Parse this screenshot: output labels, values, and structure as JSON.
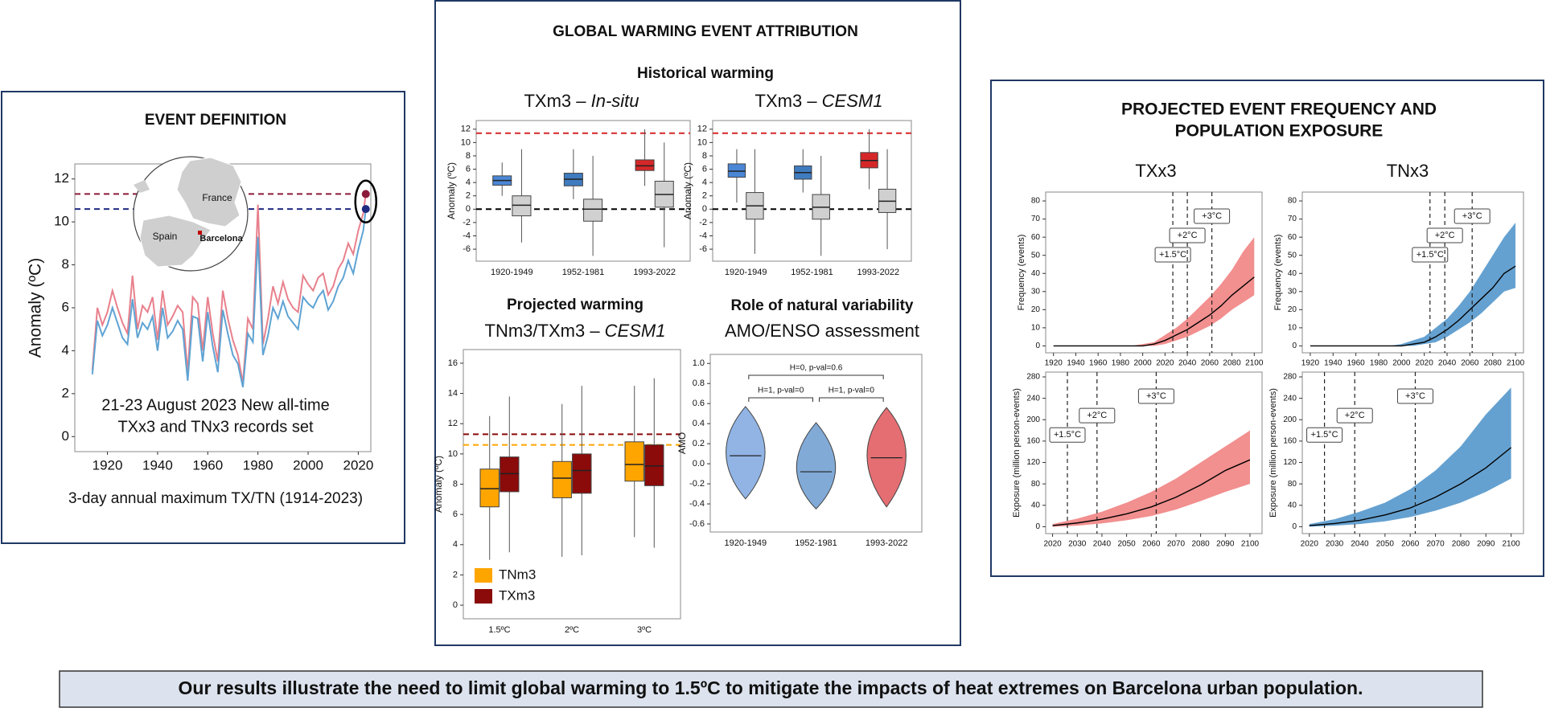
{
  "panels": {
    "left": {
      "map_labels": [
        "France",
        "Spain",
        "Barcelona"
      ],
      "annotation": [
        "21-23 August 2023 New all-time",
        "TXx3 and TNx3 records set"
      ],
      "caption": "3-day annual maximum TX/TN (1914-2023)"
    },
    "middle": {
      "title": "GLOBAL WARMING EVENT ATTRIBUTION",
      "subtitle": "Historical warming"
    },
    "right": {
      "title": [
        "PROJECTED EVENT FREQUENCY AND",
        "POPULATION EXPOSURE"
      ]
    }
  },
  "conclusion": "Our results illustrate the need to limit global warming to 1.5ºC to mitigate the impacts of heat extremes on Barcelona urban population.",
  "chart_data": [
    {
      "type": "line",
      "title": "EVENT DEFINITION",
      "ylabel": "Anomaly (ºC)",
      "x": [
        1914,
        1916,
        1918,
        1920,
        1922,
        1924,
        1926,
        1928,
        1930,
        1932,
        1934,
        1936,
        1938,
        1940,
        1942,
        1944,
        1946,
        1948,
        1950,
        1952,
        1954,
        1956,
        1958,
        1960,
        1962,
        1964,
        1966,
        1968,
        1970,
        1972,
        1974,
        1976,
        1978,
        1980,
        1982,
        1984,
        1986,
        1988,
        1990,
        1992,
        1994,
        1996,
        1998,
        2000,
        2002,
        2004,
        2006,
        2008,
        2010,
        2012,
        2014,
        2016,
        2018,
        2020,
        2022,
        2023
      ],
      "series": [
        {
          "color": "#e8808c",
          "values": [
            3.1,
            6.0,
            5.2,
            5.8,
            6.8,
            6.0,
            5.3,
            4.8,
            7.5,
            5.0,
            6.1,
            5.8,
            6.5,
            4.5,
            6.8,
            5.2,
            5.6,
            6.1,
            5.8,
            3.0,
            6.5,
            6.2,
            4.0,
            6.5,
            4.8,
            3.5,
            6.8,
            5.5,
            4.5,
            3.8,
            2.5,
            5.5,
            5.0,
            10.8,
            4.3,
            5.5,
            7.0,
            6.2,
            7.2,
            6.4,
            6.0,
            5.8,
            7.5,
            7.1,
            6.8,
            7.4,
            7.6,
            6.6,
            7.0,
            7.8,
            8.2,
            9.0,
            8.5,
            9.6,
            10.4,
            11.3
          ]
        },
        {
          "color": "#5fa3d3",
          "values": [
            2.9,
            5.4,
            4.7,
            5.2,
            6.0,
            5.3,
            4.6,
            4.3,
            6.4,
            4.6,
            5.3,
            5.0,
            5.6,
            4.0,
            6.0,
            4.6,
            4.9,
            5.4,
            5.0,
            2.6,
            5.6,
            5.5,
            3.5,
            5.8,
            4.2,
            3.0,
            5.9,
            4.8,
            3.8,
            3.4,
            2.3,
            4.8,
            4.4,
            9.3,
            3.8,
            4.7,
            6.0,
            5.5,
            6.3,
            5.6,
            5.3,
            5.0,
            6.5,
            6.2,
            6.0,
            6.5,
            6.8,
            5.9,
            6.3,
            7.0,
            7.4,
            8.2,
            7.6,
            8.7,
            9.6,
            10.6
          ]
        }
      ],
      "hlines": [
        {
          "value": 11.3,
          "color": "#8b1a3a"
        },
        {
          "value": 10.6,
          "color": "#1f2a80"
        }
      ],
      "highlight_last": true,
      "xlim": [
        1907,
        2025
      ],
      "xticks": [
        1920,
        1940,
        1960,
        1980,
        2000,
        2020
      ],
      "ylim": [
        -0.7,
        12.7
      ],
      "yticks": [
        0,
        2,
        4,
        6,
        8,
        10,
        12
      ]
    },
    {
      "type": "box",
      "title_parts": [
        "TXm3 – ",
        "In-situ"
      ],
      "ylabel": "Anomaly (ºC)",
      "categories": [
        "1920-1949",
        "1952-1981",
        "1993-2022"
      ],
      "series": [
        {
          "colors": [
            "#4a86d6",
            "#3f7bbf",
            "#d62728"
          ],
          "values": [
            [
              2,
              3.6,
              4.3,
              5,
              7
            ],
            [
              1.5,
              3.5,
              4.5,
              5.4,
              9
            ],
            [
              3.5,
              5.8,
              6.5,
              7.4,
              12
            ]
          ]
        },
        {
          "color": "#d0d0d0",
          "values": [
            [
              -5,
              -1,
              0.6,
              2,
              9
            ],
            [
              -7,
              -1.8,
              0,
              1.5,
              8
            ],
            [
              -5.7,
              0.3,
              2.2,
              4.2,
              10
            ]
          ]
        }
      ],
      "hlines": [
        {
          "value": 11.4,
          "color": "#d62728"
        },
        {
          "value": 0,
          "color": "#000000"
        }
      ],
      "ylim": [
        -7.8,
        13.3
      ],
      "yticks": [
        -6,
        -4,
        -2,
        0,
        2,
        4,
        6,
        8,
        10,
        12
      ]
    },
    {
      "type": "box",
      "title_parts": [
        "TXm3 – ",
        "CESM1"
      ],
      "ylabel": "Anomaly (ºC)",
      "categories": [
        "1920-1949",
        "1952-1981",
        "1993-2022"
      ],
      "series": [
        {
          "colors": [
            "#4a86d6",
            "#3f7bbf",
            "#d62728"
          ],
          "values": [
            [
              1,
              4.8,
              5.7,
              6.8,
              9
            ],
            [
              2.5,
              4.5,
              5.5,
              6.5,
              9
            ],
            [
              3,
              6.2,
              7.3,
              8.5,
              12
            ]
          ]
        },
        {
          "color": "#d0d0d0",
          "values": [
            [
              -6.7,
              -1.5,
              0.5,
              2.5,
              9
            ],
            [
              -7,
              -1.5,
              0.3,
              2.2,
              8
            ],
            [
              -6,
              -0.5,
              1.2,
              3,
              9
            ]
          ]
        }
      ],
      "hlines": [
        {
          "value": 11.4,
          "color": "#d62728"
        },
        {
          "value": 0,
          "color": "#000000"
        }
      ],
      "ylim": [
        -7.8,
        13.3
      ],
      "yticks": [
        -6,
        -4,
        -2,
        0,
        2,
        4,
        6,
        8,
        10,
        12
      ]
    },
    {
      "type": "box",
      "title": "Projected warming",
      "subtitle_parts": [
        "TNm3/TXm3 – ",
        "CESM1"
      ],
      "ylabel": "Anomaly (ºC)",
      "categories": [
        "1.5ºC",
        "2ºC",
        "3ºC"
      ],
      "series": [
        {
          "name": "TNm3",
          "color": "#ffa500",
          "values": [
            [
              3,
              6.5,
              7.7,
              9,
              12.5
            ],
            [
              3.2,
              7.1,
              8.4,
              9.5,
              13.3
            ],
            [
              4.5,
              8.2,
              9.3,
              10.8,
              14.5
            ]
          ]
        },
        {
          "name": "TXm3",
          "color": "#8b0a0a",
          "values": [
            [
              3.5,
              7.5,
              8.7,
              9.8,
              13.8
            ],
            [
              3.3,
              7.4,
              8.9,
              10,
              14.5
            ],
            [
              3.8,
              7.9,
              9.2,
              10.6,
              15
            ]
          ]
        }
      ],
      "hlines": [
        {
          "value": 11.3,
          "color": "#8b0a0a"
        },
        {
          "value": 10.6,
          "color": "#ffa500"
        }
      ],
      "legend": "lower left",
      "ylim": [
        -0.9,
        16.9
      ],
      "yticks": [
        0,
        2,
        4,
        6,
        8,
        10,
        12,
        14,
        16
      ]
    },
    {
      "type": "violin",
      "title": "Role of natural variability",
      "subtitle": "AMO/ENSO assessment",
      "ylabel": "AMO",
      "categories": [
        "1920-1949",
        "1952-1981",
        "1993-2022"
      ],
      "colors": [
        "#7ea7e0",
        "#6b9bd0",
        "#e0555b"
      ],
      "values": [
        [
          -0.35,
          0.08,
          0.57
        ],
        [
          -0.45,
          -0.08,
          0.41
        ],
        [
          -0.43,
          0.06,
          0.56
        ]
      ],
      "brackets": [
        {
          "label": "H=0, p-val=0.6",
          "span": [
            0,
            2
          ]
        },
        {
          "label": "H=1, p-val=0",
          "span": [
            0,
            1
          ]
        },
        {
          "label": "H=1, p-val=0",
          "span": [
            1,
            2
          ]
        }
      ],
      "ylim": [
        -0.68,
        1.09
      ],
      "yticks": [
        -0.6,
        -0.4,
        -0.2,
        {
          "value": 0,
          "label": "0.0"
        },
        0.2,
        0.4,
        0.6,
        0.8,
        {
          "value": 1,
          "label": "1.0"
        }
      ]
    },
    {
      "type": "line",
      "title": "TXx3",
      "ylabel": "Frequency (events)",
      "x": [
        1920,
        1930,
        1940,
        1950,
        1960,
        1970,
        1980,
        1990,
        2000,
        2010,
        2020,
        2030,
        2040,
        2050,
        2060,
        2070,
        2080,
        2090,
        2100
      ],
      "series": [
        {
          "color": "#000000",
          "values": [
            0,
            0,
            0,
            0,
            0,
            0,
            0,
            0,
            0,
            1,
            3,
            6,
            9,
            13,
            17,
            22,
            28,
            33,
            38
          ]
        }
      ],
      "band": {
        "color": "#f07b7b",
        "lower": [
          0,
          0,
          0,
          0,
          0,
          0,
          0,
          0,
          0,
          0,
          1,
          3,
          5,
          8,
          11,
          15,
          20,
          24,
          28
        ],
        "upper": [
          0,
          0,
          0,
          0,
          0,
          0,
          0,
          0,
          1,
          2,
          6,
          10,
          15,
          21,
          27,
          34,
          42,
          52,
          60
        ]
      },
      "vlines": [
        {
          "value": 2027,
          "label": "+1.5°C"
        },
        {
          "value": 2040,
          "label": "+2°C"
        },
        {
          "value": 2062,
          "label": "+3°C"
        }
      ],
      "xlim": [
        1913,
        2107
      ],
      "xticks": [
        1920,
        1940,
        1960,
        1980,
        2000,
        2020,
        2040,
        2060,
        2080,
        2100
      ],
      "ylim": [
        -3.8,
        84.9
      ],
      "yticks": [
        0,
        10,
        20,
        30,
        40,
        50,
        60,
        70,
        80
      ]
    },
    {
      "type": "line",
      "title": "TNx3",
      "ylabel": "Frequency (events)",
      "x": [
        1920,
        1930,
        1940,
        1950,
        1960,
        1970,
        1980,
        1990,
        2000,
        2010,
        2020,
        2030,
        2040,
        2050,
        2060,
        2070,
        2080,
        2090,
        2100
      ],
      "series": [
        {
          "color": "#000000",
          "values": [
            0,
            0,
            0,
            0,
            0,
            0,
            0,
            0,
            0,
            1,
            2,
            5,
            9,
            14,
            20,
            26,
            32,
            40,
            44
          ]
        }
      ],
      "band": {
        "color": "#4a90c8",
        "lower": [
          0,
          0,
          0,
          0,
          0,
          0,
          0,
          0,
          0,
          0,
          1,
          2,
          5,
          9,
          13,
          18,
          24,
          30,
          32
        ],
        "upper": [
          0,
          0,
          0,
          0,
          0,
          0,
          0,
          0,
          1,
          3,
          5,
          10,
          15,
          22,
          30,
          40,
          50,
          60,
          68
        ]
      },
      "vlines": [
        {
          "value": 2025,
          "label": "+1.5°C"
        },
        {
          "value": 2038,
          "label": "+2°C"
        },
        {
          "value": 2062,
          "label": "+3°C"
        }
      ],
      "xlim": [
        1913,
        2107
      ],
      "xticks": [
        1920,
        1940,
        1960,
        1980,
        2000,
        2020,
        2040,
        2060,
        2080,
        2100
      ],
      "ylim": [
        -3.8,
        84.9
      ],
      "yticks": [
        0,
        10,
        20,
        30,
        40,
        50,
        60,
        70,
        80
      ]
    },
    {
      "type": "line",
      "ylabel": "Exposure (million person-events)",
      "x": [
        2020,
        2030,
        2040,
        2050,
        2060,
        2070,
        2080,
        2090,
        2100
      ],
      "series": [
        {
          "color": "#000000",
          "values": [
            2,
            7,
            14,
            24,
            37,
            55,
            78,
            105,
            125
          ]
        }
      ],
      "band": {
        "color": "#f07b7b",
        "lower": [
          0,
          2,
          6,
          12,
          20,
          32,
          48,
          65,
          80
        ],
        "upper": [
          5,
          15,
          28,
          45,
          65,
          90,
          120,
          150,
          180
        ]
      },
      "vlines": [
        {
          "value": 2026,
          "label": "+1.5°C"
        },
        {
          "value": 2038,
          "label": "+2°C"
        },
        {
          "value": 2062,
          "label": "+3°C"
        }
      ],
      "xlim": [
        2017.2,
        2104.9
      ],
      "xticks": [
        2020,
        2030,
        2040,
        2050,
        2060,
        2070,
        2080,
        2090,
        2100
      ],
      "ylim": [
        -12.9,
        289
      ],
      "yticks": [
        0,
        40,
        80,
        120,
        160,
        200,
        240,
        280
      ]
    },
    {
      "type": "line",
      "ylabel": "Exposure (million person-events)",
      "x": [
        2020,
        2030,
        2040,
        2050,
        2060,
        2070,
        2080,
        2090,
        2100
      ],
      "series": [
        {
          "color": "#000000",
          "values": [
            2,
            6,
            12,
            22,
            35,
            55,
            80,
            110,
            148
          ]
        }
      ],
      "band": {
        "color": "#4a90c8",
        "lower": [
          0,
          2,
          5,
          10,
          18,
          30,
          45,
          65,
          90
        ],
        "upper": [
          5,
          14,
          28,
          45,
          70,
          105,
          150,
          210,
          260
        ]
      },
      "vlines": [
        {
          "value": 2026,
          "label": "+1.5°C"
        },
        {
          "value": 2038,
          "label": "+2°C"
        },
        {
          "value": 2062,
          "label": "+3°C"
        }
      ],
      "xlim": [
        2017.2,
        2104.9
      ],
      "xticks": [
        2020,
        2030,
        2040,
        2050,
        2060,
        2070,
        2080,
        2090,
        2100
      ],
      "ylim": [
        -12.9,
        289
      ],
      "yticks": [
        0,
        40,
        80,
        120,
        160,
        200,
        240,
        280
      ]
    }
  ]
}
